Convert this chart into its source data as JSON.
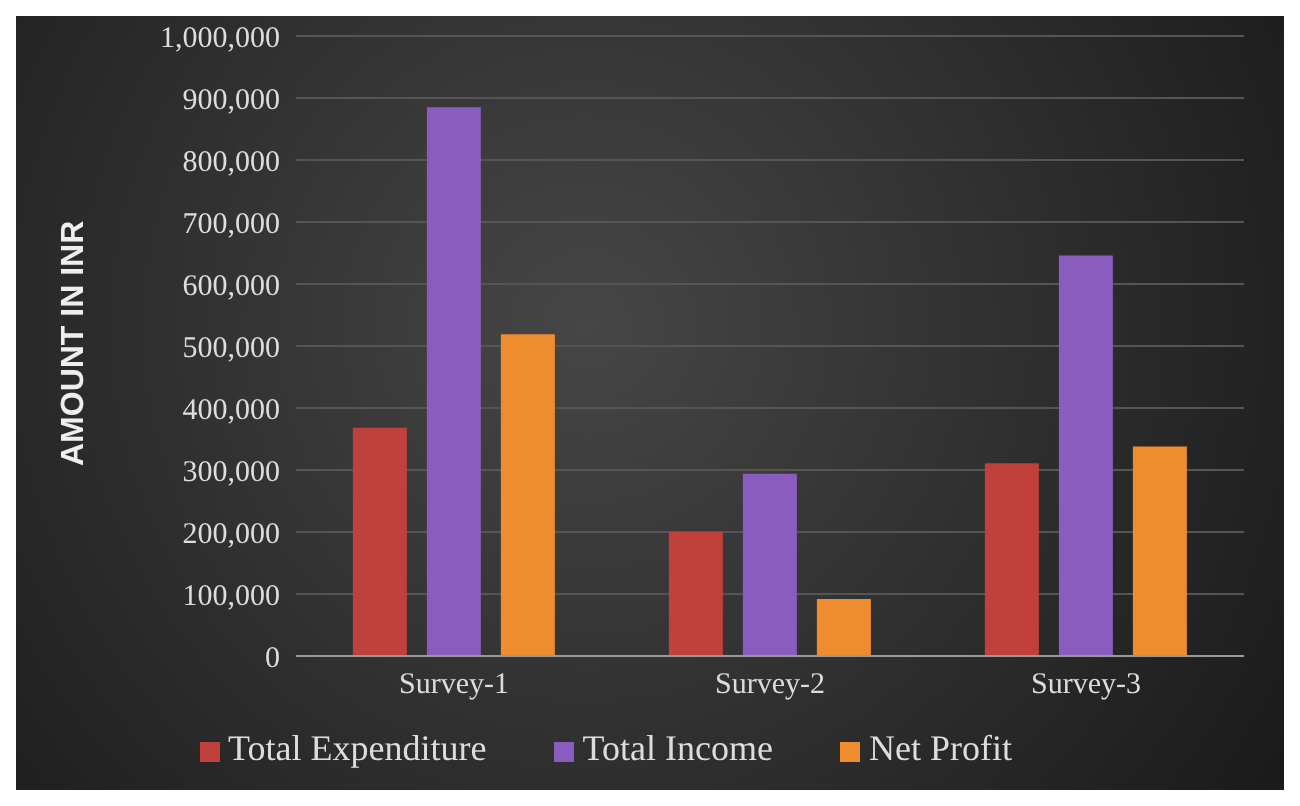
{
  "chart_data": {
    "type": "bar",
    "ylabel": "AMOUNT IN INR",
    "categories": [
      "Survey-1",
      "Survey-2",
      "Survey-3"
    ],
    "series": [
      {
        "name": "Total Expenditure",
        "color": "#c0403c",
        "values": [
          368000,
          200000,
          311000
        ]
      },
      {
        "name": "Total Income",
        "color": "#8a5cc0",
        "values": [
          885000,
          294000,
          646000
        ]
      },
      {
        "name": "Net Profit",
        "color": "#f08c30",
        "values": [
          519000,
          92000,
          338000
        ]
      }
    ],
    "ylim": [
      0,
      1000000
    ],
    "yticks": [
      0,
      {
        "value": 100000,
        "label": "100,000"
      },
      {
        "value": 200000,
        "label": "200,000"
      },
      {
        "value": 300000,
        "label": "300,000"
      },
      {
        "value": 400000,
        "label": "400,000"
      },
      {
        "value": 500000,
        "label": "500,000"
      },
      {
        "value": 600000,
        "label": "600,000"
      },
      {
        "value": 700000,
        "label": "700,000"
      },
      {
        "value": 800000,
        "label": "800,000"
      },
      {
        "value": 900000,
        "label": "900,000"
      },
      {
        "value": 1000000,
        "label": "1,000,000"
      }
    ],
    "grid": "y",
    "legend": "bottom"
  }
}
